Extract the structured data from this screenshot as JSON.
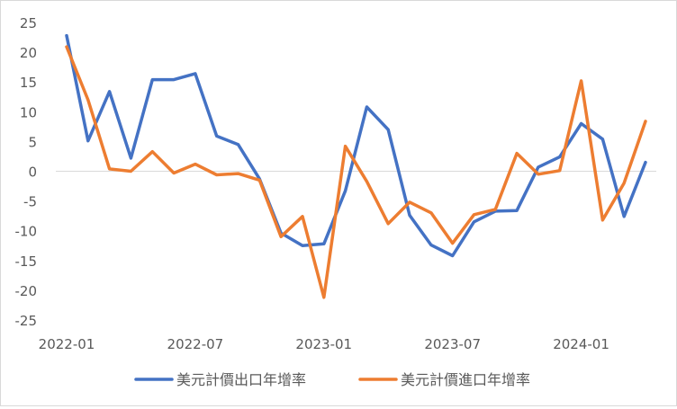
{
  "chart_data": {
    "type": "line",
    "title": "",
    "xlabel": "",
    "ylabel": "",
    "ylim": [
      -25,
      25
    ],
    "yticks": [
      -25,
      -20,
      -15,
      -10,
      -5,
      0,
      5,
      10,
      15,
      20,
      25
    ],
    "grid": false,
    "legend_position": "bottom",
    "x": [
      "2022-01",
      "2022-02",
      "2022-03",
      "2022-04",
      "2022-05",
      "2022-06",
      "2022-07",
      "2022-08",
      "2022-09",
      "2022-10",
      "2022-11",
      "2022-12",
      "2023-01",
      "2023-02",
      "2023-03",
      "2023-04",
      "2023-05",
      "2023-06",
      "2023-07",
      "2023-08",
      "2023-09",
      "2023-10",
      "2023-11",
      "2023-12",
      "2024-01",
      "2024-02",
      "2024-03",
      "2024-04"
    ],
    "xtick_labels": [
      "2022-01",
      "2022-07",
      "2023-01",
      "2023-07",
      "2024-01"
    ],
    "xtick_positions": [
      "2022-01",
      "2022-07",
      "2023-01",
      "2023-07",
      "2024-01"
    ],
    "series": [
      {
        "name": "美元計價出口年增率",
        "color": "#4472c4",
        "values": [
          22.8,
          5.1,
          13.4,
          2.2,
          15.4,
          15.4,
          16.4,
          5.9,
          4.5,
          -1.3,
          -10.4,
          -12.5,
          -12.2,
          -3.3,
          10.8,
          7.0,
          -7.4,
          -12.4,
          -14.2,
          -8.5,
          -6.7,
          -6.6,
          0.7,
          2.4,
          8.0,
          5.4,
          -7.6,
          1.5
        ]
      },
      {
        "name": "美元計價進口年增率",
        "color": "#ed7d31",
        "values": [
          20.9,
          12.0,
          0.4,
          0.0,
          3.3,
          -0.3,
          1.2,
          -0.6,
          -0.4,
          -1.5,
          -11.0,
          -7.6,
          -21.2,
          4.2,
          -1.7,
          -8.8,
          -5.2,
          -7.0,
          -12.1,
          -7.3,
          -6.4,
          3.0,
          -0.5,
          0.1,
          15.2,
          -8.2,
          -2.0,
          8.4
        ]
      }
    ]
  }
}
